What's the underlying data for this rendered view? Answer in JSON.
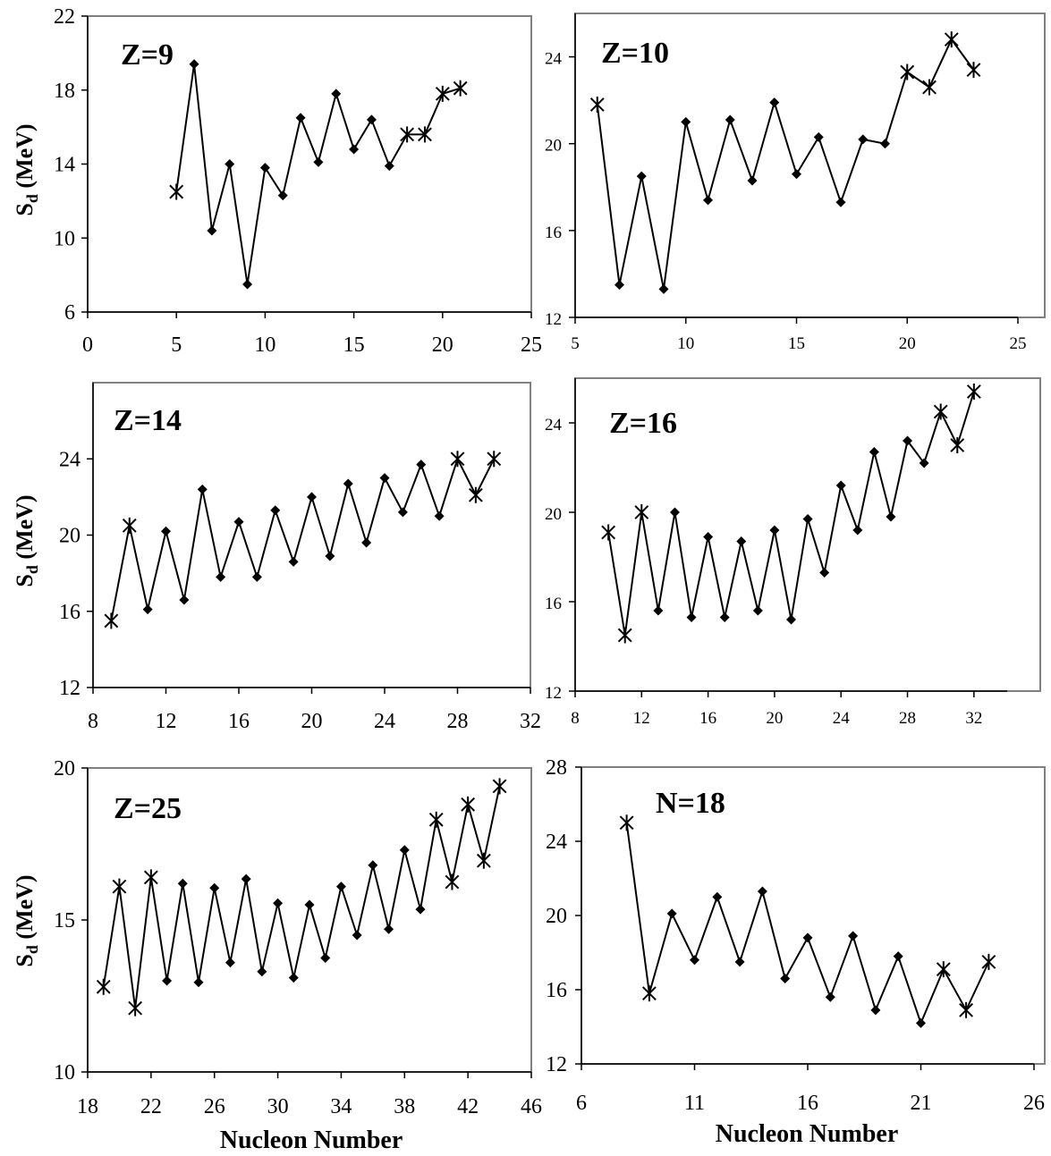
{
  "chart_data": [
    {
      "type": "line",
      "title": "Z=9",
      "ylabel": "S_d (MeV)",
      "xlabel": "",
      "xlim": [
        0,
        25
      ],
      "ylim": [
        6,
        22
      ],
      "xticks": [
        0,
        5,
        10,
        15,
        20,
        25
      ],
      "yticks": [
        6,
        10,
        14,
        18,
        22
      ],
      "series": [
        {
          "marker": "mixed",
          "points": [
            {
              "x": 5,
              "y": 12.5,
              "m": "x"
            },
            {
              "x": 6,
              "y": 19.4,
              "m": "d"
            },
            {
              "x": 7,
              "y": 10.4,
              "m": "d"
            },
            {
              "x": 8,
              "y": 14.0,
              "m": "d"
            },
            {
              "x": 9,
              "y": 7.5,
              "m": "d"
            },
            {
              "x": 10,
              "y": 13.8,
              "m": "d"
            },
            {
              "x": 11,
              "y": 12.3,
              "m": "d"
            },
            {
              "x": 12,
              "y": 16.5,
              "m": "d"
            },
            {
              "x": 13,
              "y": 14.1,
              "m": "d"
            },
            {
              "x": 14,
              "y": 17.8,
              "m": "d"
            },
            {
              "x": 15,
              "y": 14.8,
              "m": "d"
            },
            {
              "x": 16,
              "y": 16.4,
              "m": "d"
            },
            {
              "x": 17,
              "y": 13.9,
              "m": "d"
            },
            {
              "x": 18,
              "y": 15.6,
              "m": "x"
            },
            {
              "x": 19,
              "y": 15.6,
              "m": "x"
            },
            {
              "x": 20,
              "y": 17.8,
              "m": "x"
            },
            {
              "x": 21,
              "y": 18.1,
              "m": "x"
            }
          ]
        }
      ]
    },
    {
      "type": "line",
      "title": "Z=10",
      "ylabel": "",
      "xlabel": "",
      "xlim": [
        5,
        25
      ],
      "ylim": [
        12,
        26
      ],
      "xticks": [
        5,
        10,
        15,
        20,
        25
      ],
      "yticks": [
        12,
        16,
        20,
        24
      ],
      "series": [
        {
          "marker": "mixed",
          "points": [
            {
              "x": 6,
              "y": 21.8,
              "m": "x"
            },
            {
              "x": 7,
              "y": 13.5,
              "m": "d"
            },
            {
              "x": 8,
              "y": 18.5,
              "m": "d"
            },
            {
              "x": 9,
              "y": 13.3,
              "m": "d"
            },
            {
              "x": 10,
              "y": 21.0,
              "m": "d"
            },
            {
              "x": 11,
              "y": 17.4,
              "m": "d"
            },
            {
              "x": 12,
              "y": 21.1,
              "m": "d"
            },
            {
              "x": 13,
              "y": 18.3,
              "m": "d"
            },
            {
              "x": 14,
              "y": 21.9,
              "m": "d"
            },
            {
              "x": 15,
              "y": 18.6,
              "m": "d"
            },
            {
              "x": 16,
              "y": 20.3,
              "m": "d"
            },
            {
              "x": 17,
              "y": 17.3,
              "m": "d"
            },
            {
              "x": 18,
              "y": 20.2,
              "m": "d"
            },
            {
              "x": 19,
              "y": 20.0,
              "m": "d"
            },
            {
              "x": 20,
              "y": 23.3,
              "m": "x"
            },
            {
              "x": 21,
              "y": 22.6,
              "m": "x"
            },
            {
              "x": 22,
              "y": 24.8,
              "m": "x"
            },
            {
              "x": 23,
              "y": 23.4,
              "m": "x"
            }
          ]
        }
      ]
    },
    {
      "type": "line",
      "title": "Z=14",
      "ylabel": "S_d (MeV)",
      "xlabel": "",
      "xlim": [
        8,
        32
      ],
      "ylim": [
        12,
        28
      ],
      "xticks": [
        8,
        12,
        16,
        20,
        24,
        28,
        32
      ],
      "yticks": [
        12,
        16,
        20,
        24
      ],
      "series": [
        {
          "marker": "mixed",
          "points": [
            {
              "x": 9,
              "y": 15.5,
              "m": "x"
            },
            {
              "x": 10,
              "y": 20.5,
              "m": "x"
            },
            {
              "x": 11,
              "y": 16.1,
              "m": "d"
            },
            {
              "x": 12,
              "y": 20.2,
              "m": "d"
            },
            {
              "x": 13,
              "y": 16.6,
              "m": "d"
            },
            {
              "x": 14,
              "y": 22.4,
              "m": "d"
            },
            {
              "x": 15,
              "y": 17.8,
              "m": "d"
            },
            {
              "x": 16,
              "y": 20.7,
              "m": "d"
            },
            {
              "x": 17,
              "y": 17.8,
              "m": "d"
            },
            {
              "x": 18,
              "y": 21.3,
              "m": "d"
            },
            {
              "x": 19,
              "y": 18.6,
              "m": "d"
            },
            {
              "x": 20,
              "y": 22.0,
              "m": "d"
            },
            {
              "x": 21,
              "y": 18.9,
              "m": "d"
            },
            {
              "x": 22,
              "y": 22.7,
              "m": "d"
            },
            {
              "x": 23,
              "y": 19.6,
              "m": "d"
            },
            {
              "x": 24,
              "y": 23.0,
              "m": "d"
            },
            {
              "x": 25,
              "y": 21.2,
              "m": "d"
            },
            {
              "x": 26,
              "y": 23.7,
              "m": "d"
            },
            {
              "x": 27,
              "y": 21.0,
              "m": "d"
            },
            {
              "x": 28,
              "y": 24.0,
              "m": "x"
            },
            {
              "x": 29,
              "y": 22.1,
              "m": "x"
            },
            {
              "x": 30,
              "y": 24.0,
              "m": "x"
            }
          ]
        }
      ]
    },
    {
      "type": "line",
      "title": "Z=16",
      "ylabel": "",
      "xlabel": "",
      "xlim": [
        8,
        34
      ],
      "ylim": [
        12,
        26
      ],
      "xticks": [
        8,
        12,
        16,
        20,
        24,
        28,
        32
      ],
      "yticks": [
        12,
        16,
        20,
        24
      ],
      "series": [
        {
          "marker": "mixed",
          "points": [
            {
              "x": 10,
              "y": 19.1,
              "m": "x"
            },
            {
              "x": 11,
              "y": 14.5,
              "m": "x"
            },
            {
              "x": 12,
              "y": 20.0,
              "m": "x"
            },
            {
              "x": 13,
              "y": 15.6,
              "m": "d"
            },
            {
              "x": 14,
              "y": 20.0,
              "m": "d"
            },
            {
              "x": 15,
              "y": 15.3,
              "m": "d"
            },
            {
              "x": 16,
              "y": 18.9,
              "m": "d"
            },
            {
              "x": 17,
              "y": 15.3,
              "m": "d"
            },
            {
              "x": 18,
              "y": 18.7,
              "m": "d"
            },
            {
              "x": 19,
              "y": 15.6,
              "m": "d"
            },
            {
              "x": 20,
              "y": 19.2,
              "m": "d"
            },
            {
              "x": 21,
              "y": 15.2,
              "m": "d"
            },
            {
              "x": 22,
              "y": 19.7,
              "m": "d"
            },
            {
              "x": 23,
              "y": 17.3,
              "m": "d"
            },
            {
              "x": 24,
              "y": 21.2,
              "m": "d"
            },
            {
              "x": 25,
              "y": 19.2,
              "m": "d"
            },
            {
              "x": 26,
              "y": 22.7,
              "m": "d"
            },
            {
              "x": 27,
              "y": 19.8,
              "m": "d"
            },
            {
              "x": 28,
              "y": 23.2,
              "m": "d"
            },
            {
              "x": 29,
              "y": 22.2,
              "m": "d"
            },
            {
              "x": 30,
              "y": 24.5,
              "m": "x"
            },
            {
              "x": 31,
              "y": 23.0,
              "m": "x"
            },
            {
              "x": 32,
              "y": 25.4,
              "m": "x"
            }
          ]
        }
      ]
    },
    {
      "type": "line",
      "title": "Z=25",
      "ylabel": "S_d (MeV)",
      "xlabel": "Nucleon Number",
      "xlim": [
        18,
        46
      ],
      "ylim": [
        10,
        20
      ],
      "xticks": [
        18,
        22,
        26,
        30,
        34,
        38,
        42,
        46
      ],
      "yticks": [
        10,
        15,
        20
      ],
      "series": [
        {
          "marker": "mixed",
          "points": [
            {
              "x": 19,
              "y": 12.8,
              "m": "x"
            },
            {
              "x": 20,
              "y": 16.1,
              "m": "x"
            },
            {
              "x": 21,
              "y": 12.1,
              "m": "x"
            },
            {
              "x": 22,
              "y": 16.4,
              "m": "x"
            },
            {
              "x": 23,
              "y": 13.0,
              "m": "d"
            },
            {
              "x": 24,
              "y": 16.2,
              "m": "d"
            },
            {
              "x": 25,
              "y": 12.95,
              "m": "d"
            },
            {
              "x": 26,
              "y": 16.05,
              "m": "d"
            },
            {
              "x": 27,
              "y": 13.6,
              "m": "d"
            },
            {
              "x": 28,
              "y": 16.35,
              "m": "d"
            },
            {
              "x": 29,
              "y": 13.3,
              "m": "d"
            },
            {
              "x": 30,
              "y": 15.55,
              "m": "d"
            },
            {
              "x": 31,
              "y": 13.1,
              "m": "d"
            },
            {
              "x": 32,
              "y": 15.5,
              "m": "d"
            },
            {
              "x": 33,
              "y": 13.75,
              "m": "d"
            },
            {
              "x": 34,
              "y": 16.1,
              "m": "d"
            },
            {
              "x": 35,
              "y": 14.5,
              "m": "d"
            },
            {
              "x": 36,
              "y": 16.8,
              "m": "d"
            },
            {
              "x": 37,
              "y": 14.7,
              "m": "d"
            },
            {
              "x": 38,
              "y": 17.3,
              "m": "d"
            },
            {
              "x": 39,
              "y": 15.35,
              "m": "d"
            },
            {
              "x": 40,
              "y": 18.3,
              "m": "x"
            },
            {
              "x": 41,
              "y": 16.25,
              "m": "x"
            },
            {
              "x": 42,
              "y": 18.8,
              "m": "x"
            },
            {
              "x": 43,
              "y": 16.95,
              "m": "x"
            },
            {
              "x": 44,
              "y": 19.4,
              "m": "x"
            }
          ]
        }
      ]
    },
    {
      "type": "line",
      "title": "N=18",
      "ylabel": "",
      "xlabel": "Nucleon Number",
      "xlim": [
        6,
        26
      ],
      "ylim": [
        12,
        28
      ],
      "xticks": [
        6,
        11,
        16,
        21,
        26
      ],
      "yticks": [
        12,
        16,
        20,
        24,
        28
      ],
      "series": [
        {
          "marker": "mixed",
          "points": [
            {
              "x": 8,
              "y": 25.0,
              "m": "x"
            },
            {
              "x": 9,
              "y": 15.8,
              "m": "x"
            },
            {
              "x": 10,
              "y": 20.1,
              "m": "d"
            },
            {
              "x": 11,
              "y": 17.6,
              "m": "d"
            },
            {
              "x": 12,
              "y": 21.0,
              "m": "d"
            },
            {
              "x": 13,
              "y": 17.5,
              "m": "d"
            },
            {
              "x": 14,
              "y": 21.3,
              "m": "d"
            },
            {
              "x": 15,
              "y": 16.6,
              "m": "d"
            },
            {
              "x": 16,
              "y": 18.8,
              "m": "d"
            },
            {
              "x": 17,
              "y": 15.6,
              "m": "d"
            },
            {
              "x": 18,
              "y": 18.9,
              "m": "d"
            },
            {
              "x": 19,
              "y": 14.9,
              "m": "d"
            },
            {
              "x": 20,
              "y": 17.8,
              "m": "d"
            },
            {
              "x": 21,
              "y": 14.2,
              "m": "d"
            },
            {
              "x": 22,
              "y": 17.1,
              "m": "x"
            },
            {
              "x": 23,
              "y": 14.9,
              "m": "x"
            },
            {
              "x": 24,
              "y": 17.5,
              "m": "x"
            }
          ]
        }
      ]
    }
  ]
}
